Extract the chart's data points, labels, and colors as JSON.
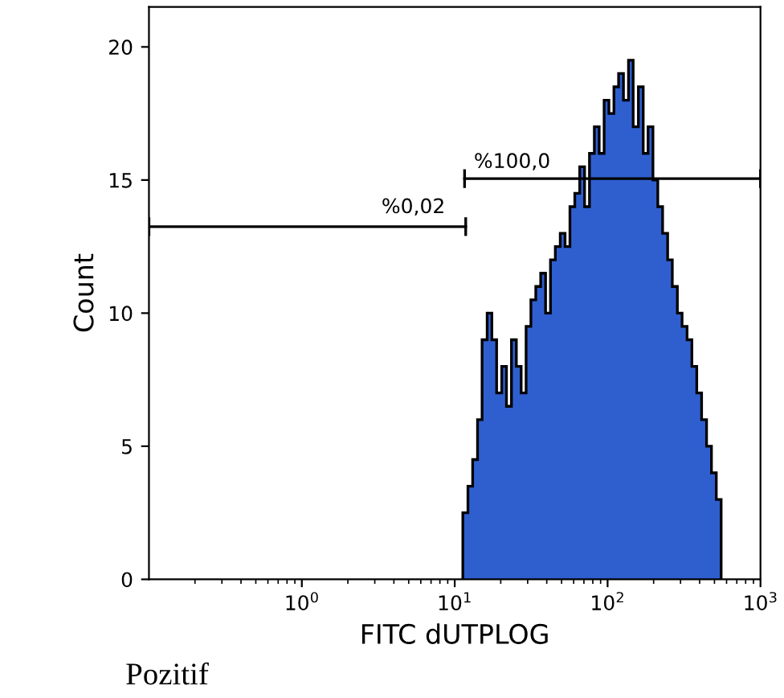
{
  "chart_data": {
    "type": "histogram",
    "xlabel": "FITC dUTPLOG",
    "ylabel": "Count",
    "log": "x",
    "xlim": [
      0.1,
      1000
    ],
    "xticks": [
      {
        "value": 1,
        "label": "10$^{0}$"
      },
      {
        "value": 10,
        "label": "10$^{1}$"
      },
      {
        "value": 100,
        "label": "10$^{2}$"
      },
      {
        "value": 1000,
        "label": "10$^{3}$"
      }
    ],
    "ylim": [
      0,
      21.5
    ],
    "yticks": [
      0,
      5,
      10,
      15,
      20
    ],
    "bins": [
      11.3,
      12.2,
      13.1,
      14.1,
      15.1,
      16.3,
      17.5,
      18.8,
      20.3,
      21.8,
      23.5,
      25.3,
      27.2,
      29.3,
      31.5,
      33.9,
      36.5,
      39.3,
      42.3,
      45.5,
      49.0,
      52.7,
      56.7,
      61.0,
      65.7,
      70.7,
      76.1,
      81.9,
      88.1,
      94.9,
      102,
      110,
      118,
      127,
      137,
      147,
      159,
      171,
      184,
      198,
      213,
      229,
      247,
      265,
      286,
      307,
      331,
      356,
      383,
      412,
      444,
      478,
      514,
      553
    ],
    "values": [
      2.5,
      3.5,
      4.5,
      6,
      9,
      10,
      9,
      7,
      8,
      6.5,
      9,
      8,
      7,
      9.5,
      10.5,
      11,
      11.5,
      10,
      12,
      12.5,
      13,
      12.5,
      14,
      14.5,
      15.5,
      14,
      16,
      17,
      16,
      18,
      17.5,
      18.5,
      19,
      18,
      19.5,
      17,
      18.5,
      16,
      17,
      15,
      14,
      13,
      12,
      11,
      10,
      9.5,
      9,
      8,
      7,
      6,
      5,
      4,
      3
    ],
    "color": "#2f5fcf",
    "series": [
      {
        "type": "line",
        "name": "%0,02",
        "color": "#000000",
        "x": [
          0.1,
          11.8
        ],
        "values": [
          13.25,
          13.25
        ]
      },
      {
        "type": "line",
        "name": "%100,0",
        "color": "#000000",
        "x": [
          11.6,
          1000
        ],
        "values": [
          15.05,
          15.05
        ]
      }
    ],
    "annotations": [
      "Pozitif"
    ]
  }
}
